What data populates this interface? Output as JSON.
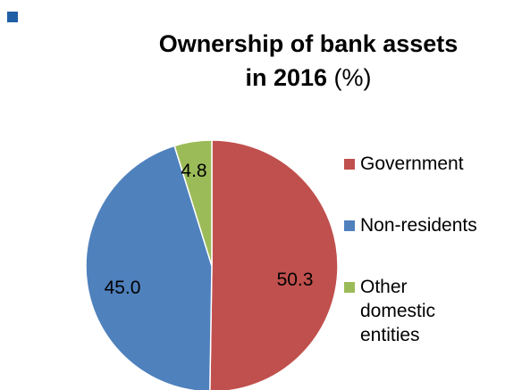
{
  "colors": {
    "bullet": "#1F5FA6"
  },
  "chart_data": {
    "type": "pie",
    "title_main": "Ownership of bank assets in 2016",
    "title_unit": "(%)",
    "categories": [
      "Government",
      "Non-residents",
      "Other domestic entities"
    ],
    "values": [
      50.3,
      45.0,
      4.8
    ],
    "labels": [
      "50.3",
      "45.0",
      "4.8"
    ],
    "colors": [
      "#C0504D",
      "#4F81BD",
      "#9BBB59"
    ],
    "start_angle_deg": 0,
    "direction": "clockwise",
    "legend_position": "right"
  }
}
